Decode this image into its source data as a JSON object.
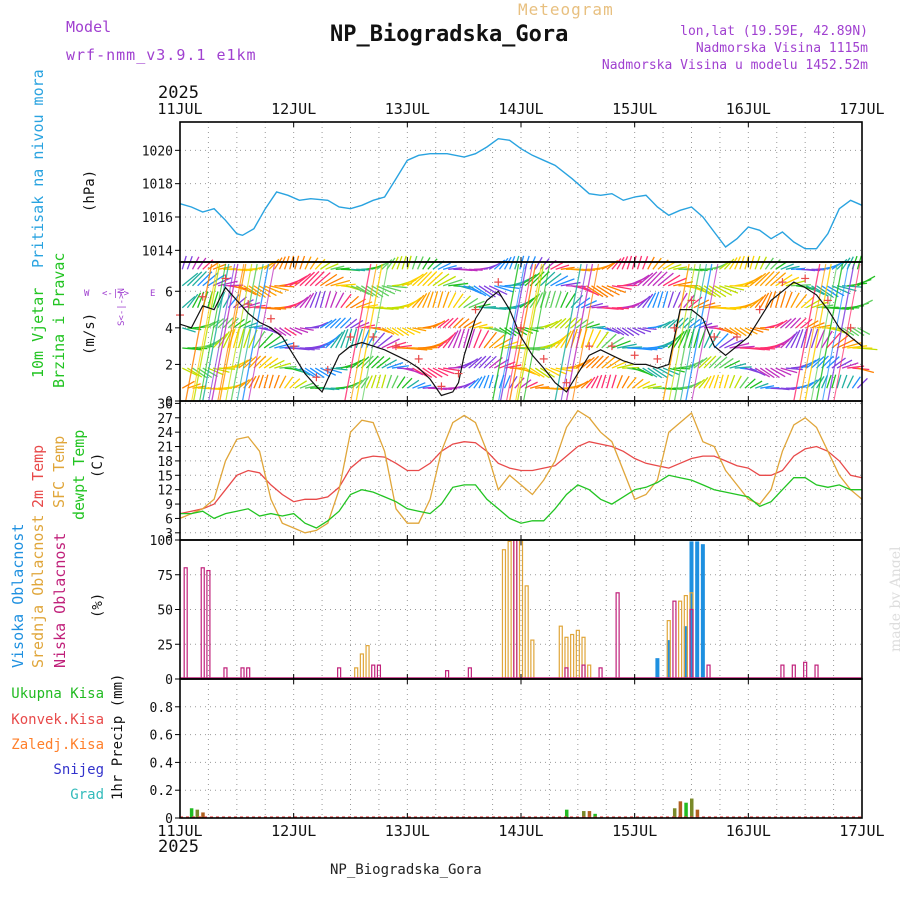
{
  "header": {
    "model_label": "Model",
    "model_name": "wrf-nmm_v3.9.1 e1km",
    "meteogram_label": "Meteogram",
    "station_title": "NP_Biogradska_Gora",
    "coords": "lon,lat (19.59E, 42.89N)",
    "elevation": "Nadmorska Visina 1115m",
    "model_elevation": "Nadmorska Visina u modelu 1452.52m",
    "year": "2025",
    "footer_station": "NP_Biogradska_Gora",
    "credit": "made by Angel"
  },
  "colors": {
    "pressure": "#29a3e0",
    "temp2m": "#e84a4a",
    "sfc": "#e0a63a",
    "dewpt": "#22c422",
    "high_cloud": "#1e90e0",
    "mid_cloud": "#e0a63a",
    "low_cloud": "#c0207a",
    "total_precip": "#22bb22",
    "conv_precip": "#e84a4a",
    "snow": "#3333cc",
    "hail": "#33bbbb",
    "purple_text": "#a040d0",
    "gold_text": "#e8c080",
    "wind_speed": "#111111",
    "wind_gust": "#e84a4a"
  },
  "time_axis": {
    "labels": [
      "11JUL",
      "12JUL",
      "13JUL",
      "14JUL",
      "15JUL",
      "16JUL",
      "17JUL"
    ],
    "start_day": 11,
    "end_day": 17
  },
  "panels": {
    "pressure": {
      "label": "Pritisak na nivou mora",
      "unit": "(hPa)",
      "ticks": [
        "1014",
        "1016",
        "1018",
        "1020"
      ]
    },
    "wind": {
      "label1": "10m Vjetar",
      "label2": "Brzina i Pravac",
      "unit": "(m/s)",
      "ticks": [
        "0",
        "2",
        "4",
        "6"
      ],
      "compass_w": "W",
      "compass_e": "E",
      "compass_arrows": "<-|->",
      "compass_ns": "S<-|->N"
    },
    "temperature": {
      "label1": "2m Temp",
      "label2": "SFC Temp",
      "label3": "dewpt Temp",
      "unit": "(C)",
      "ticks": [
        "3",
        "6",
        "9",
        "12",
        "15",
        "18",
        "21",
        "24",
        "27",
        "30"
      ]
    },
    "clouds": {
      "label1": "Visoka Oblacnost",
      "label2": "Srednja Oblacnost",
      "label3": "Niska Oblacnost",
      "unit": "(%)",
      "ticks": [
        "0",
        "25",
        "50",
        "75",
        "100"
      ]
    },
    "precip": {
      "legend": [
        "Ukupna Kisa",
        "Konvek.Kisa",
        "Zaledj.Kisa",
        "Snijeg",
        "Grad"
      ],
      "unit": "1hr Precip (mm)",
      "ticks": [
        "0",
        "0.2",
        "0.4",
        "0.6",
        "0.8"
      ]
    }
  },
  "chart_data": [
    {
      "type": "line",
      "ylabel": "Pritisak na nivou mora (hPa)",
      "ylim": [
        1013.3,
        1021.7
      ],
      "series": [
        {
          "x": [
            11.0,
            11.1,
            11.2,
            11.3,
            11.4,
            11.5,
            11.55,
            11.65,
            11.75,
            11.85,
            11.95,
            12.05,
            12.15,
            12.3,
            12.4,
            12.5,
            12.6,
            12.7,
            12.8,
            12.9,
            13.0,
            13.1,
            13.2,
            13.35,
            13.5,
            13.6,
            13.7,
            13.8,
            13.9,
            14.0,
            14.1,
            14.2,
            14.3,
            14.45,
            14.6,
            14.7,
            14.8,
            14.9,
            15.0,
            15.1,
            15.2,
            15.3,
            15.4,
            15.5,
            15.6,
            15.7,
            15.8,
            15.9,
            16.0,
            16.1,
            16.2,
            16.3,
            16.4,
            16.5,
            16.6,
            16.7,
            16.8,
            16.9,
            17.0
          ],
          "y": [
            1016.8,
            1016.6,
            1016.3,
            1016.5,
            1015.8,
            1015.0,
            1014.9,
            1015.3,
            1016.5,
            1017.5,
            1017.3,
            1017.0,
            1017.1,
            1017.0,
            1016.6,
            1016.5,
            1016.7,
            1017.0,
            1017.2,
            1018.3,
            1019.4,
            1019.7,
            1019.8,
            1019.8,
            1019.6,
            1019.8,
            1020.2,
            1020.7,
            1020.6,
            1020.1,
            1019.7,
            1019.4,
            1019.1,
            1018.3,
            1017.4,
            1017.3,
            1017.4,
            1017.0,
            1017.2,
            1017.3,
            1016.6,
            1016.1,
            1016.4,
            1016.6,
            1016.0,
            1015.1,
            1014.2,
            1014.7,
            1015.4,
            1015.2,
            1014.7,
            1015.1,
            1014.5,
            1014.1,
            1014.1,
            1015.0,
            1016.5,
            1017.0,
            1016.7
          ]
        }
      ]
    },
    {
      "type": "line",
      "ylabel": "10m Vjetar Brzina i Pravac (m/s)",
      "ylim": [
        0,
        7.6
      ],
      "series": [
        {
          "x": [
            11.0,
            11.1,
            11.2,
            11.3,
            11.4,
            11.5,
            11.6,
            11.7,
            11.8,
            11.9,
            12.0,
            12.1,
            12.2,
            12.25,
            12.3,
            12.4,
            12.5,
            12.6,
            12.7,
            12.8,
            12.9,
            13.0,
            13.1,
            13.2,
            13.3,
            13.4,
            13.45,
            13.5,
            13.6,
            13.7,
            13.8,
            13.9,
            14.0,
            14.1,
            14.2,
            14.3,
            14.4,
            14.5,
            14.6,
            14.7,
            14.8,
            14.9,
            15.0,
            15.1,
            15.2,
            15.3,
            15.35,
            15.4,
            15.5,
            15.6,
            15.7,
            15.8,
            15.9,
            16.0,
            16.1,
            16.2,
            16.3,
            16.4,
            16.5,
            16.6,
            16.7,
            16.8,
            16.9,
            17.0
          ],
          "y": [
            4.2,
            4.0,
            5.2,
            5.0,
            6.2,
            5.5,
            4.8,
            4.3,
            4.0,
            3.5,
            2.5,
            1.5,
            0.8,
            0.5,
            1.2,
            2.5,
            3.0,
            3.2,
            3.0,
            2.8,
            2.5,
            2.2,
            1.8,
            1.2,
            0.3,
            0.5,
            1.0,
            2.5,
            4.5,
            5.5,
            6.0,
            5.0,
            3.5,
            2.5,
            1.8,
            1.0,
            0.5,
            1.5,
            2.5,
            2.8,
            2.5,
            2.2,
            2.0,
            2.0,
            1.8,
            2.0,
            3.5,
            5.0,
            5.0,
            4.5,
            3.0,
            2.5,
            3.0,
            3.5,
            4.5,
            5.5,
            6.0,
            6.5,
            6.2,
            5.8,
            5.0,
            4.0,
            3.5,
            3.0
          ]
        }
      ]
    },
    {
      "type": "line",
      "ylabel": "2m Temp / SFC Temp / dewpt Temp (C)",
      "ylim": [
        1.5,
        30.5
      ],
      "series": [
        {
          "x": [
            11.0,
            11.1,
            11.2,
            11.3,
            11.4,
            11.5,
            11.6,
            11.7,
            11.8,
            11.9,
            12.0,
            12.1,
            12.2,
            12.3,
            12.4,
            12.5,
            12.6,
            12.7,
            12.8,
            12.9,
            13.0,
            13.1,
            13.2,
            13.3,
            13.4,
            13.5,
            13.6,
            13.7,
            13.8,
            13.9,
            14.0,
            14.1,
            14.2,
            14.3,
            14.4,
            14.5,
            14.6,
            14.7,
            14.8,
            14.9,
            15.0,
            15.1,
            15.2,
            15.3,
            15.4,
            15.5,
            15.6,
            15.7,
            15.8,
            15.9,
            16.0,
            16.1,
            16.2,
            16.3,
            16.4,
            16.5,
            16.6,
            16.7,
            16.8,
            16.9,
            17.0
          ],
          "y": [
            7.0,
            7.5,
            8.0,
            9.0,
            12.0,
            15.0,
            16.0,
            15.5,
            13.0,
            11.0,
            9.5,
            10.0,
            10.0,
            10.5,
            12.5,
            16.5,
            18.5,
            19.0,
            18.8,
            17.5,
            16.0,
            16.0,
            17.5,
            20.0,
            21.5,
            22.0,
            21.8,
            20.0,
            17.5,
            16.5,
            16.0,
            16.0,
            16.5,
            17.0,
            19.0,
            21.0,
            22.0,
            21.5,
            21.0,
            20.0,
            18.5,
            17.5,
            17.0,
            16.5,
            17.5,
            18.5,
            19.0,
            19.0,
            18.0,
            17.0,
            16.5,
            15.0,
            15.0,
            16.0,
            19.0,
            20.5,
            21.0,
            20.0,
            18.0,
            15.0,
            14.5
          ]
        },
        {
          "x": [
            11.0,
            11.1,
            11.2,
            11.3,
            11.4,
            11.5,
            11.6,
            11.7,
            11.8,
            11.9,
            12.0,
            12.1,
            12.2,
            12.3,
            12.4,
            12.5,
            12.6,
            12.7,
            12.8,
            12.9,
            13.0,
            13.1,
            13.2,
            13.3,
            13.4,
            13.5,
            13.6,
            13.7,
            13.8,
            13.9,
            14.0,
            14.1,
            14.2,
            14.3,
            14.4,
            14.5,
            14.6,
            14.7,
            14.8,
            14.9,
            15.0,
            15.1,
            15.2,
            15.3,
            15.4,
            15.5,
            15.6,
            15.7,
            15.8,
            15.9,
            16.0,
            16.1,
            16.2,
            16.3,
            16.4,
            16.5,
            16.6,
            16.7,
            16.8,
            16.9,
            17.0
          ],
          "y": [
            6.0,
            7.0,
            8.0,
            10.0,
            18.0,
            22.5,
            23.0,
            20.0,
            10.0,
            5.0,
            4.0,
            3.0,
            3.5,
            5.0,
            12.0,
            24.0,
            26.5,
            26.0,
            20.0,
            8.0,
            5.0,
            5.0,
            10.0,
            20.0,
            26.0,
            27.5,
            26.0,
            20.0,
            12.0,
            15.0,
            13.0,
            11.0,
            14.0,
            18.0,
            25.0,
            28.5,
            27.0,
            24.0,
            22.0,
            16.0,
            10.0,
            11.0,
            14.0,
            24.0,
            26.0,
            28.0,
            22.0,
            21.0,
            16.0,
            13.0,
            10.0,
            9.0,
            12.0,
            20.0,
            25.5,
            27.0,
            25.0,
            20.0,
            15.0,
            12.0,
            10.0
          ]
        },
        {
          "x": [
            11.0,
            11.1,
            11.2,
            11.3,
            11.4,
            11.5,
            11.6,
            11.7,
            11.8,
            11.9,
            12.0,
            12.1,
            12.2,
            12.3,
            12.4,
            12.5,
            12.6,
            12.7,
            12.8,
            12.9,
            13.0,
            13.1,
            13.2,
            13.3,
            13.4,
            13.5,
            13.6,
            13.7,
            13.8,
            13.9,
            14.0,
            14.1,
            14.2,
            14.3,
            14.4,
            14.5,
            14.6,
            14.7,
            14.8,
            14.9,
            15.0,
            15.1,
            15.2,
            15.3,
            15.4,
            15.5,
            15.6,
            15.7,
            15.8,
            15.9,
            16.0,
            16.1,
            16.2,
            16.3,
            16.4,
            16.5,
            16.6,
            16.7,
            16.8,
            16.9,
            17.0
          ],
          "y": [
            7.0,
            7.0,
            7.5,
            6.0,
            7.0,
            7.5,
            8.0,
            6.5,
            7.0,
            6.5,
            7.0,
            5.0,
            4.0,
            5.5,
            7.5,
            11.0,
            12.0,
            11.5,
            10.5,
            9.5,
            8.0,
            7.5,
            7.0,
            9.0,
            12.5,
            13.0,
            13.0,
            10.0,
            8.0,
            6.0,
            5.0,
            5.5,
            5.5,
            8.0,
            11.0,
            13.0,
            12.0,
            10.0,
            9.0,
            10.5,
            12.0,
            12.5,
            13.5,
            15.0,
            14.5,
            14.0,
            13.0,
            12.0,
            11.5,
            11.0,
            10.5,
            8.5,
            9.5,
            12.0,
            14.5,
            14.5,
            13.0,
            12.5,
            13.0,
            12.0,
            12.0
          ]
        }
      ]
    },
    {
      "type": "bar",
      "ylabel": "Oblacnost (%)",
      "ylim": [
        0,
        100
      ],
      "series": [
        {
          "x": [
            15.2,
            15.3,
            15.45,
            15.5,
            15.55,
            15.6
          ],
          "values": [
            15,
            28,
            38,
            99,
            99,
            97
          ]
        },
        {
          "x": [
            12.55,
            12.6,
            12.65,
            13.85,
            13.9,
            13.95,
            14.0,
            14.05,
            14.1,
            14.35,
            14.4,
            14.45,
            14.5,
            14.55,
            14.6,
            15.3,
            15.4,
            15.45,
            15.5
          ],
          "values": [
            8,
            18,
            24,
            93,
            99,
            100,
            100,
            67,
            28,
            38,
            30,
            32,
            35,
            30,
            10,
            42,
            56,
            60,
            62
          ]
        },
        {
          "x": [
            11.05,
            11.2,
            11.25,
            11.4,
            11.55,
            11.6,
            12.4,
            12.7,
            12.75,
            13.35,
            13.55,
            13.95,
            14.4,
            14.55,
            14.7,
            14.85,
            15.35,
            15.5,
            15.65,
            16.3,
            16.4,
            16.5,
            16.6
          ],
          "values": [
            80,
            80,
            78,
            8,
            8,
            8,
            8,
            10,
            10,
            6,
            8,
            100,
            8,
            10,
            8,
            62,
            56,
            50,
            10,
            10,
            10,
            12,
            10
          ]
        }
      ]
    },
    {
      "type": "bar",
      "ylabel": "1hr Precip (mm)",
      "ylim": [
        0,
        1.0
      ],
      "series": [
        {
          "x": [
            11.1,
            11.15,
            11.2,
            14.4,
            14.55,
            14.6,
            14.65,
            15.35,
            15.4,
            15.45,
            15.5,
            15.55
          ],
          "values": [
            0.07,
            0.06,
            0.04,
            0.06,
            0.05,
            0.05,
            0.03,
            0.07,
            0.12,
            0.11,
            0.14,
            0.06
          ]
        }
      ]
    }
  ]
}
